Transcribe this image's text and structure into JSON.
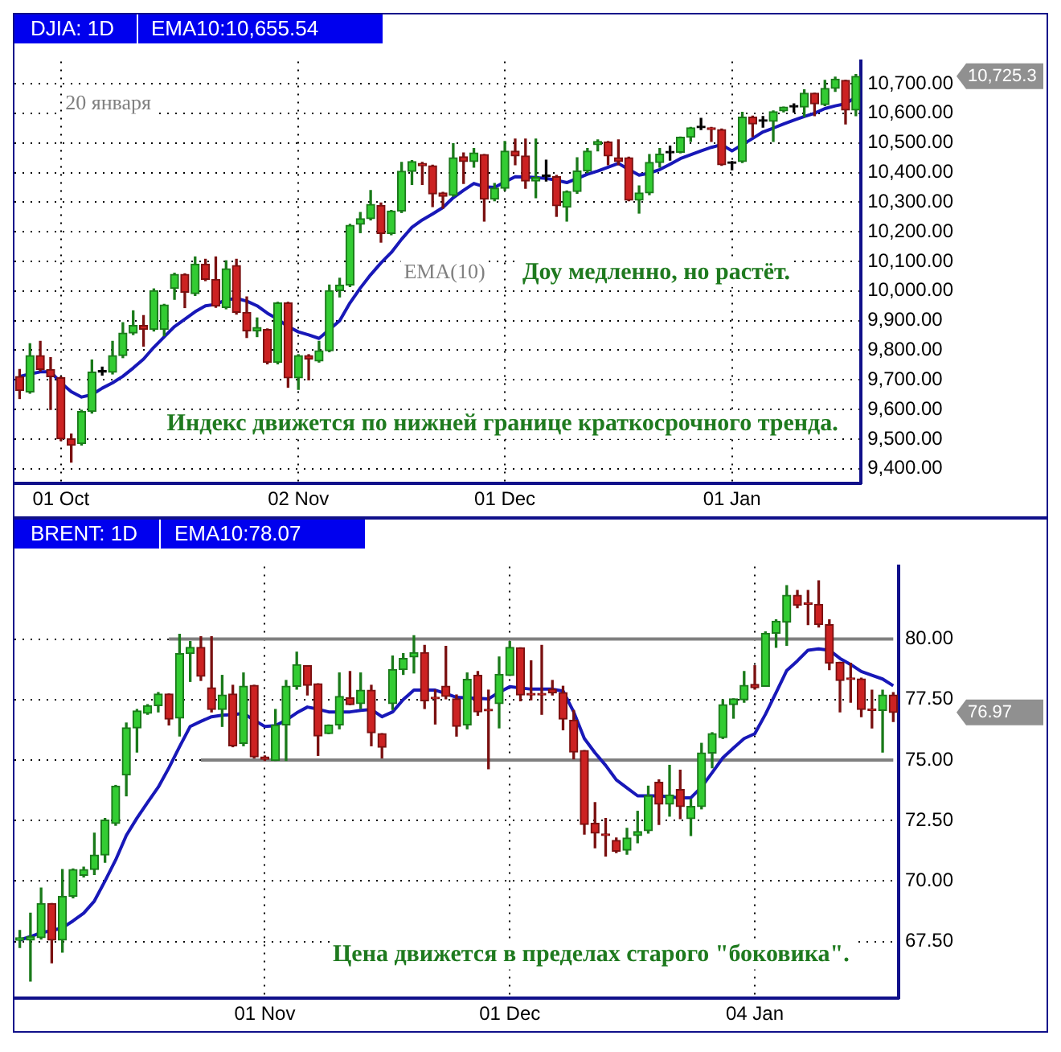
{
  "chart_data": [
    {
      "type": "candlestick",
      "title": "DJIA: 1D",
      "subtitle": "EMA10:10,655.54",
      "categories": [
        null,
        null,
        null,
        null,
        "01 Oct",
        null,
        null,
        null,
        null,
        null,
        null,
        null,
        null,
        null,
        null,
        null,
        null,
        null,
        null,
        null,
        null,
        null,
        null,
        null,
        null,
        null,
        null,
        "02 Nov",
        null,
        null,
        null,
        null,
        null,
        null,
        null,
        null,
        null,
        null,
        null,
        null,
        null,
        null,
        null,
        null,
        null,
        null,
        null,
        "01 Dec",
        null,
        null,
        null,
        null,
        null,
        null,
        null,
        null,
        null,
        null,
        null,
        null,
        null,
        null,
        null,
        null,
        null,
        null,
        null,
        null,
        null,
        "01 Jan",
        null,
        null,
        null,
        null,
        null,
        null,
        null,
        null,
        null,
        null,
        null,
        null
      ],
      "ohlc": [
        [
          9711,
          9735,
          9637,
          9664
        ],
        [
          9659,
          9822,
          9655,
          9782
        ],
        [
          9782,
          9830,
          9730,
          9735
        ],
        [
          9735,
          9775,
          9600,
          9711
        ],
        [
          9707,
          9710,
          9495,
          9501
        ],
        [
          9501,
          9517,
          9422,
          9479
        ],
        [
          9485,
          9597,
          9480,
          9593
        ],
        [
          9593,
          9767,
          9588,
          9726
        ],
        [
          9726,
          9743,
          9716,
          9726
        ],
        [
          9726,
          9830,
          9720,
          9782
        ],
        [
          9782,
          9893,
          9775,
          9858
        ],
        [
          9858,
          9933,
          9853,
          9884
        ],
        [
          9884,
          9917,
          9814,
          9870
        ],
        [
          9870,
          10007,
          9865,
          10001
        ],
        [
          9870,
          9955,
          9849,
          9953
        ],
        [
          10009,
          10060,
          9972,
          10056
        ],
        [
          10056,
          10058,
          9944,
          9996
        ],
        [
          9991,
          10115,
          9985,
          10091
        ],
        [
          10091,
          10107,
          10035,
          10039
        ],
        [
          10039,
          10115,
          9945,
          9949
        ],
        [
          9944,
          10102,
          9940,
          10075
        ],
        [
          10086,
          10107,
          9922,
          9928
        ],
        [
          9928,
          9980,
          9843,
          9865
        ],
        [
          9865,
          9909,
          9846,
          9877
        ],
        [
          9870,
          9872,
          9754,
          9759
        ],
        [
          9759,
          9962,
          9754,
          9960
        ],
        [
          9960,
          9962,
          9675,
          9707
        ],
        [
          9707,
          9785,
          9668,
          9782
        ],
        [
          9782,
          9785,
          9700,
          9770
        ],
        [
          9764,
          9830,
          9760,
          9798
        ],
        [
          9798,
          10020,
          9795,
          10001
        ],
        [
          10001,
          10043,
          9980,
          10020
        ],
        [
          10020,
          10225,
          10015,
          10222
        ],
        [
          10225,
          10265,
          10197,
          10244
        ],
        [
          10244,
          10339,
          10240,
          10292
        ],
        [
          10289,
          10297,
          10165,
          10194
        ],
        [
          10194,
          10272,
          10190,
          10270
        ],
        [
          10270,
          10434,
          10265,
          10404
        ],
        [
          10404,
          10440,
          10360,
          10437
        ],
        [
          10431,
          10434,
          10360,
          10423
        ],
        [
          10423,
          10425,
          10285,
          10328
        ],
        [
          10331,
          10333,
          10280,
          10320
        ],
        [
          10323,
          10497,
          10320,
          10450
        ],
        [
          10453,
          10466,
          10363,
          10437
        ],
        [
          10437,
          10481,
          10418,
          10466
        ],
        [
          10461,
          10461,
          10236,
          10310
        ],
        [
          10310,
          10363,
          10305,
          10347
        ],
        [
          10347,
          10505,
          10340,
          10472
        ],
        [
          10472,
          10513,
          10426,
          10456
        ],
        [
          10456,
          10513,
          10347,
          10371
        ],
        [
          10371,
          10513,
          10315,
          10383
        ],
        [
          10386,
          10442,
          10371,
          10386
        ],
        [
          10386,
          10390,
          10252,
          10288
        ],
        [
          10283,
          10338,
          10236,
          10336
        ],
        [
          10336,
          10450,
          10330,
          10405
        ],
        [
          10405,
          10481,
          10400,
          10472
        ],
        [
          10494,
          10510,
          10473,
          10505
        ],
        [
          10503,
          10505,
          10426,
          10456
        ],
        [
          10450,
          10510,
          10426,
          10437
        ],
        [
          10450,
          10452,
          10305,
          10307
        ],
        [
          10307,
          10355,
          10263,
          10331
        ],
        [
          10331,
          10461,
          10325,
          10434
        ],
        [
          10434,
          10481,
          10418,
          10462
        ],
        [
          10466,
          10489,
          10442,
          10466
        ],
        [
          10468,
          10520,
          10466,
          10519
        ],
        [
          10519,
          10552,
          10505,
          10551
        ],
        [
          10551,
          10583,
          10545,
          10551
        ],
        [
          10551,
          10552,
          10505,
          10545
        ],
        [
          10545,
          10547,
          10424,
          10426
        ],
        [
          10431,
          10437,
          10409,
          10431
        ],
        [
          10437,
          10603,
          10434,
          10587
        ],
        [
          10587,
          10590,
          10521,
          10564
        ],
        [
          10573,
          10589,
          10553,
          10573
        ],
        [
          10573,
          10608,
          10505,
          10605
        ],
        [
          10608,
          10621,
          10605,
          10621
        ],
        [
          10621,
          10632,
          10604,
          10621
        ],
        [
          10621,
          10679,
          10589,
          10668
        ],
        [
          10668,
          10668,
          10592,
          10632
        ],
        [
          10629,
          10711,
          10626,
          10684
        ],
        [
          10684,
          10722,
          10674,
          10715
        ],
        [
          10711,
          10711,
          10564,
          10611
        ],
        [
          10611,
          10731,
          10592,
          10725
        ]
      ],
      "series": [
        {
          "type": "line",
          "color": "#1818b8",
          "values": [
            9711,
            9720,
            9727,
            9727,
            9690,
            9660,
            9642,
            9650,
            9672,
            9690,
            9712,
            9740,
            9770,
            9810,
            9845,
            9880,
            9905,
            9930,
            9950,
            9955,
            9970,
            9975,
            9966,
            9950,
            9925,
            9905,
            9880,
            9862,
            9852,
            9840,
            9870,
            9900,
            9960,
            10010,
            10055,
            10095,
            10130,
            10175,
            10215,
            10240,
            10260,
            10282,
            10315,
            10340,
            10363,
            10352,
            10350,
            10368,
            10386,
            10385,
            10383,
            10380,
            10374,
            10366,
            10380,
            10394,
            10405,
            10418,
            10431,
            10410,
            10391,
            10398,
            10410,
            10428,
            10447,
            10460,
            10473,
            10485,
            10494,
            10473,
            10494,
            10515,
            10537,
            10550,
            10564,
            10577,
            10589,
            10600,
            10616,
            10625,
            10632,
            10655
          ]
        }
      ],
      "ylim": [
        9350,
        10775
      ],
      "yticks": [
        {
          "value": 9400,
          "label": "9,400.00"
        },
        {
          "value": 9500,
          "label": "9,500.00"
        },
        {
          "value": 9600,
          "label": "9,600.00"
        },
        {
          "value": 9700,
          "label": "9,700.00"
        },
        {
          "value": 9800,
          "label": "9,800.00"
        },
        {
          "value": 9900,
          "label": "9,900.00"
        },
        {
          "value": 10000,
          "label": "10,000.00"
        },
        {
          "value": 10100,
          "label": "10,100.00"
        },
        {
          "value": 10200,
          "label": "10,200.00"
        },
        {
          "value": 10300,
          "label": "10,300.00"
        },
        {
          "value": 10400,
          "label": "10,400.00"
        },
        {
          "value": 10500,
          "label": "10,500.00"
        },
        {
          "value": 10600,
          "label": "10,600.00"
        },
        {
          "value": 10700,
          "label": "10,700.00"
        }
      ],
      "grid": true,
      "annotations": [
        "20 января",
        "EMA(10)",
        "Доу медленно, но растёт.",
        "Индекс движется по нижней границе краткосрочного тренда.",
        "10,725.3"
      ]
    },
    {
      "type": "candlestick",
      "title": "BRENT: 1D",
      "subtitle": "EMA10:78.07",
      "categories": [
        null,
        null,
        null,
        null,
        null,
        null,
        null,
        null,
        null,
        null,
        null,
        null,
        null,
        null,
        null,
        null,
        null,
        null,
        null,
        null,
        null,
        null,
        null,
        "01 Nov",
        null,
        null,
        null,
        null,
        null,
        null,
        null,
        null,
        null,
        null,
        null,
        null,
        null,
        null,
        null,
        null,
        null,
        null,
        null,
        null,
        null,
        null,
        "01 Dec",
        null,
        null,
        null,
        null,
        null,
        null,
        null,
        null,
        null,
        null,
        null,
        null,
        null,
        null,
        null,
        null,
        null,
        null,
        null,
        null,
        null,
        null,
        "04 Jan",
        null,
        null,
        null,
        null,
        null,
        null,
        null,
        null,
        null,
        null,
        null,
        null,
        null
      ],
      "ohlc": [
        [
          67.55,
          67.95,
          67.25,
          67.65
        ],
        [
          67.56,
          68.67,
          65.86,
          67.7
        ],
        [
          67.66,
          69.71,
          67.6,
          69.07
        ],
        [
          69.07,
          69.07,
          66.62,
          67.56
        ],
        [
          67.56,
          70.47,
          67.06,
          69.37
        ],
        [
          69.37,
          70.5,
          69.3,
          70.47
        ],
        [
          70.23,
          70.57,
          70.17,
          70.47
        ],
        [
          70.47,
          71.98,
          70.27,
          71.07
        ],
        [
          71.07,
          72.58,
          70.77,
          72.52
        ],
        [
          72.38,
          73.95,
          72.3,
          73.92
        ],
        [
          74.38,
          76.53,
          73.52,
          76.33
        ],
        [
          76.33,
          77.09,
          75.33,
          77.03
        ],
        [
          76.93,
          77.29,
          76.89,
          77.25
        ],
        [
          77.25,
          77.79,
          76.99,
          77.73
        ],
        [
          77.73,
          77.73,
          76.45,
          76.69
        ],
        [
          76.73,
          80.2,
          75.99,
          79.4
        ],
        [
          79.4,
          79.9,
          78.25,
          79.66
        ],
        [
          79.66,
          80.1,
          78.29,
          78.46
        ],
        [
          77.99,
          80.1,
          76.99,
          77.09
        ],
        [
          77.09,
          78.5,
          76.39,
          77.69
        ],
        [
          77.73,
          78.09,
          75.55,
          75.59
        ],
        [
          75.69,
          78.6,
          75.59,
          78.05
        ],
        [
          78.09,
          78.09,
          75.09,
          75.13
        ],
        [
          75.13,
          75.17,
          74.98,
          75.03
        ],
        [
          74.98,
          77.09,
          74.98,
          76.45
        ],
        [
          76.45,
          78.29,
          74.98,
          78.05
        ],
        [
          78.05,
          79.46,
          77.93,
          78.94
        ],
        [
          78.9,
          78.9,
          77.69,
          78.09
        ],
        [
          78.15,
          78.15,
          75.19,
          75.99
        ],
        [
          76.09,
          76.45,
          76.09,
          76.45
        ],
        [
          76.45,
          78.6,
          76.29,
          77.63
        ],
        [
          77.57,
          78.66,
          77.29,
          77.29
        ],
        [
          77.33,
          78.6,
          77.13,
          77.89
        ],
        [
          77.89,
          78.09,
          75.59,
          76.13
        ],
        [
          76.09,
          76.09,
          75.09,
          75.53
        ],
        [
          77.33,
          79.3,
          77.09,
          78.74
        ],
        [
          78.74,
          79.4,
          78.54,
          79.2
        ],
        [
          79.26,
          80.14,
          78.6,
          79.44
        ],
        [
          79.44,
          79.74,
          77.13,
          77.45
        ],
        [
          77.55,
          77.89,
          76.49,
          77.53
        ],
        [
          78.05,
          79.7,
          77.53,
          77.63
        ],
        [
          77.53,
          77.69,
          75.99,
          76.39
        ],
        [
          76.45,
          78.6,
          76.29,
          78.34
        ],
        [
          78.5,
          78.66,
          76.85,
          76.99
        ],
        [
          77.05,
          77.89,
          74.64,
          77.03
        ],
        [
          77.33,
          79.26,
          76.33,
          78.54
        ],
        [
          78.5,
          79.9,
          78.5,
          79.66
        ],
        [
          79.64,
          79.64,
          77.45,
          77.69
        ],
        [
          77.7,
          79.1,
          77.49,
          77.69
        ],
        [
          77.7,
          79.74,
          76.89,
          77.69
        ],
        [
          77.93,
          78.29,
          77.69,
          77.77
        ],
        [
          77.79,
          78.05,
          76.25,
          76.69
        ],
        [
          76.65,
          77.05,
          75.05,
          75.33
        ],
        [
          75.39,
          75.39,
          71.94,
          72.34
        ],
        [
          72.38,
          73.24,
          71.37,
          71.98
        ],
        [
          71.9,
          72.58,
          71.03,
          71.88
        ],
        [
          71.68,
          71.78,
          71.17,
          71.23
        ],
        [
          71.27,
          72.18,
          71.11,
          71.78
        ],
        [
          71.88,
          72.88,
          71.58,
          72.04
        ],
        [
          72.08,
          73.92,
          71.98,
          73.52
        ],
        [
          74.08,
          74.18,
          72.34,
          73.18
        ],
        [
          73.18,
          74.78,
          72.68,
          73.56
        ],
        [
          73.78,
          74.58,
          72.58,
          73.08
        ],
        [
          72.58,
          73.38,
          71.88,
          73.08
        ],
        [
          73.08,
          75.69,
          72.98,
          75.29
        ],
        [
          75.29,
          76.13,
          74.68,
          76.09
        ],
        [
          75.93,
          77.49,
          75.89,
          77.29
        ],
        [
          77.29,
          77.53,
          76.73,
          77.53
        ],
        [
          77.49,
          78.66,
          77.39,
          78.09
        ],
        [
          78.13,
          78.9,
          77.93,
          77.99
        ],
        [
          78.05,
          80.3,
          78.05,
          80.24
        ],
        [
          80.24,
          80.8,
          79.66,
          80.74
        ],
        [
          80.7,
          82.21,
          79.74,
          81.81
        ],
        [
          81.81,
          82.01,
          81.3,
          81.4
        ],
        [
          81.45,
          82.01,
          80.6,
          81.44
        ],
        [
          81.44,
          82.41,
          80.5,
          80.6
        ],
        [
          80.6,
          80.8,
          78.74,
          79.0
        ],
        [
          79.04,
          79.04,
          76.99,
          78.29
        ],
        [
          78.35,
          79.0,
          77.39,
          78.33
        ],
        [
          78.35,
          78.39,
          76.79,
          77.09
        ],
        [
          77.07,
          77.89,
          76.33,
          77.05
        ],
        [
          77.05,
          77.89,
          75.33,
          77.69
        ],
        [
          77.69,
          77.79,
          76.59,
          76.97
        ]
      ],
      "series": [
        {
          "type": "line",
          "color": "#1818b8",
          "values": [
            67.56,
            67.7,
            67.86,
            67.95,
            68.06,
            68.35,
            68.67,
            69.17,
            70.0,
            70.87,
            71.88,
            72.6,
            73.25,
            73.88,
            74.68,
            75.55,
            76.39,
            76.6,
            76.79,
            76.85,
            76.88,
            76.93,
            76.65,
            76.39,
            76.42,
            76.65,
            76.95,
            77.19,
            77.1,
            76.99,
            76.99,
            76.99,
            77.05,
            77.09,
            76.79,
            76.99,
            77.5,
            77.89,
            77.89,
            77.89,
            77.75,
            77.59,
            77.57,
            77.55,
            77.53,
            77.8,
            78.03,
            77.98,
            77.93,
            77.93,
            77.93,
            77.85,
            76.99,
            75.89,
            75.3,
            74.78,
            74.18,
            73.85,
            73.52,
            73.52,
            73.52,
            73.48,
            73.44,
            73.44,
            73.88,
            74.48,
            75.09,
            75.5,
            75.89,
            76.09,
            76.89,
            77.79,
            78.7,
            79.1,
            79.54,
            79.6,
            79.54,
            79.2,
            78.95,
            78.66,
            78.5,
            78.35,
            78.07
          ]
        },
        {
          "type": "line",
          "color": "#808080",
          "values": [
            null,
            null,
            null,
            null,
            null,
            null,
            null,
            null,
            null,
            null,
            null,
            null,
            null,
            null,
            80,
            80,
            80,
            80,
            80,
            80,
            80,
            80,
            80,
            80,
            80,
            80,
            80,
            80,
            80,
            80,
            80,
            80,
            80,
            80,
            80,
            80,
            80,
            80,
            80,
            80,
            80,
            80,
            80,
            80,
            80,
            80,
            80,
            80,
            80,
            80,
            80,
            80,
            80,
            80,
            80,
            80,
            80,
            80,
            80,
            80,
            80,
            80,
            80,
            80,
            80,
            80,
            80,
            80,
            80,
            80,
            80,
            80,
            80,
            80,
            80,
            80,
            80,
            80,
            80,
            80,
            80,
            80,
            80
          ]
        },
        {
          "type": "line",
          "color": "#808080",
          "values": [
            null,
            null,
            null,
            null,
            null,
            null,
            null,
            null,
            null,
            null,
            null,
            null,
            null,
            null,
            null,
            null,
            null,
            75,
            75,
            75,
            75,
            75,
            75,
            75,
            75,
            75,
            75,
            75,
            75,
            75,
            75,
            75,
            75,
            75,
            75,
            75,
            75,
            75,
            75,
            75,
            75,
            75,
            75,
            75,
            75,
            75,
            75,
            75,
            75,
            75,
            75,
            75,
            75,
            75,
            75,
            75,
            75,
            75,
            75,
            75,
            75,
            75,
            75,
            75,
            75,
            75,
            75,
            75,
            75,
            75,
            75,
            75,
            75,
            75,
            75,
            75,
            75,
            75,
            75,
            75,
            75,
            75,
            75
          ]
        }
      ],
      "ylim": [
        65.15,
        83.0
      ],
      "yticks": [
        {
          "value": 67.5,
          "label": "67.50"
        },
        {
          "value": 70,
          "label": "70.00"
        },
        {
          "value": 72.5,
          "label": "72.50"
        },
        {
          "value": 75,
          "label": "75.00"
        },
        {
          "value": 77.5,
          "label": "77.50"
        },
        {
          "value": 80,
          "label": "80.00"
        }
      ],
      "grid": true,
      "annotations": [
        "Цена движется в пределах старого \"боковика\".",
        "76.97"
      ]
    }
  ]
}
